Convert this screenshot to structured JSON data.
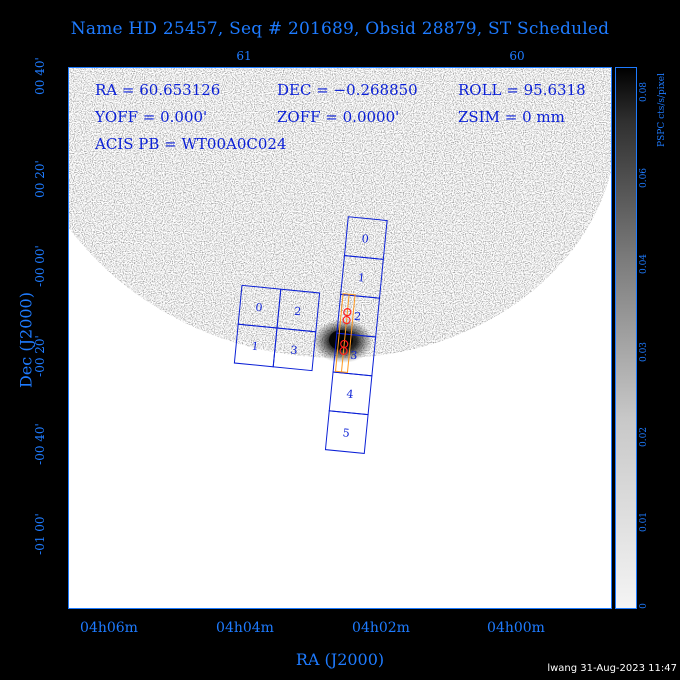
{
  "title": "Name HD 25457, Seq # 201689, Obsid 28879, ST Scheduled",
  "top_axis_ticks": [
    "61",
    "60"
  ],
  "x_axis": {
    "label": "RA (J2000)",
    "ticks": [
      "04h06m",
      "04h04m",
      "04h02m",
      "04h00m"
    ]
  },
  "y_axis": {
    "label": "Dec (J2000)",
    "ticks": [
      "00 40'",
      "00 20'",
      "-00 00'",
      "-00 20'",
      "-00 40'",
      "-01 00'"
    ]
  },
  "info": {
    "ra": "RA = 60.653126",
    "dec": "DEC = −0.268850",
    "roll": "ROLL = 95.6318",
    "yoff": "YOFF =   0.000'",
    "zoff": "ZOFF =  0.0000'",
    "zsim": "ZSIM = 0 mm",
    "acis_pb": "ACIS PB = WT00A0C024"
  },
  "chips": {
    "s_array": [
      "0",
      "1",
      "2",
      "3",
      "4",
      "5"
    ],
    "i_array": [
      "0",
      "2",
      "1",
      "3"
    ]
  },
  "colorbar": {
    "label": "PSPC cts/s/pixel",
    "ticks": [
      "0.08",
      "0.06",
      "0.04",
      "0.03",
      "0.02",
      "0.01",
      "0"
    ]
  },
  "footer": "lwang 31-Aug-2023 11:47",
  "colors": {
    "axis": "#1e7bff",
    "chip_outline": "#0a1fd6",
    "overlay_red": "#ff2020",
    "overlay_orange": "#ff9a20"
  }
}
